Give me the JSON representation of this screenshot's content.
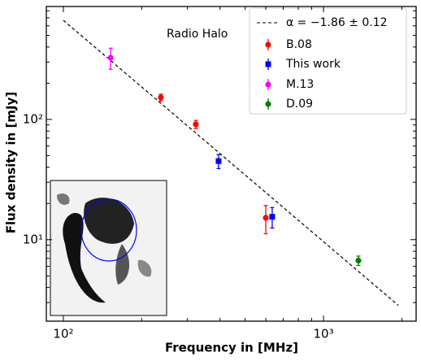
{
  "chart_data": {
    "type": "scatter",
    "xlabel": "Frequency in [MHz]",
    "ylabel": "Flux density in [mJy]",
    "annotation": "Radio Halo",
    "xscale": "log",
    "yscale": "log",
    "xlim": [
      86,
      2270
    ],
    "ylim": [
      2.1,
      869
    ],
    "xticks": [
      {
        "value": 100,
        "label": "10²"
      },
      {
        "value": 1000,
        "label": "10³"
      }
    ],
    "yticks": [
      {
        "value": 10,
        "label": "10¹"
      },
      {
        "value": 100,
        "label": "10²"
      }
    ],
    "xminorticks": [
      200,
      300,
      400,
      500,
      600,
      700,
      800,
      900,
      2000
    ],
    "yminorticks": [
      3,
      4,
      5,
      6,
      7,
      8,
      9,
      20,
      30,
      40,
      50,
      60,
      70,
      80,
      90,
      200,
      300,
      400,
      500,
      600,
      700,
      800
    ],
    "legend": "upper right",
    "series": [
      {
        "name": "α = −1.86 ± 0.12",
        "marker": "line",
        "color": "#000000",
        "x": [
          100,
          1940
        ],
        "values": [
          667,
          2.84
        ]
      },
      {
        "name": "B.08",
        "marker": "circle",
        "color": "#ff0000",
        "x": [
          237,
          323,
          600
        ],
        "values": [
          152,
          91,
          15.2
        ],
        "errors": [
          10,
          7,
          4
        ]
      },
      {
        "name": "This work",
        "marker": "square",
        "color": "#0000ff",
        "x": [
          395,
          635
        ],
        "values": [
          45,
          15.5
        ],
        "errors": [
          6,
          3
        ]
      },
      {
        "name": "M.13",
        "marker": "circle",
        "color": "#ff00ff",
        "x": [
          152
        ],
        "values": [
          326
        ],
        "errors": [
          65
        ]
      },
      {
        "name": "D.09",
        "marker": "circle",
        "color": "#008000",
        "x": [
          1362
        ],
        "values": [
          6.7
        ],
        "errors": [
          0.6
        ]
      }
    ]
  }
}
